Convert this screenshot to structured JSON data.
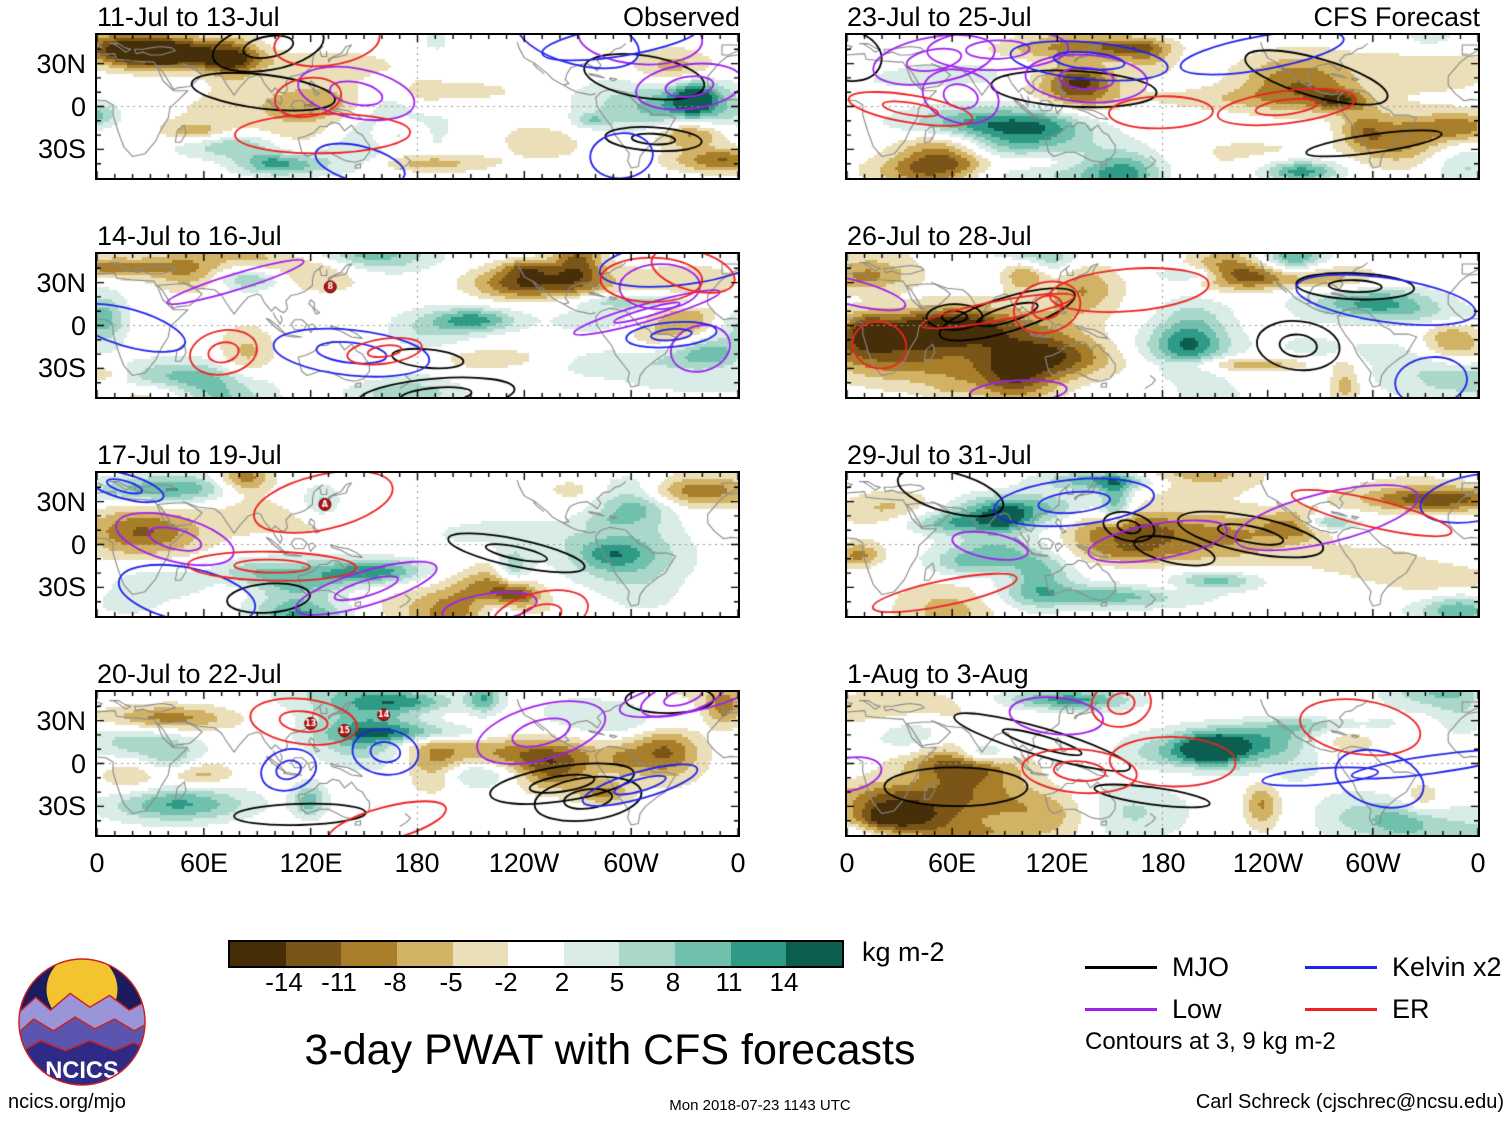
{
  "title": "3-day PWAT with CFS forecasts",
  "panels": [
    {
      "title": "11-Jul to 13-Jul",
      "corner": "Observed",
      "side": "left",
      "row": 0,
      "seed": 11,
      "storms": []
    },
    {
      "title": "14-Jul to 16-Jul",
      "corner": "",
      "side": "left",
      "row": 1,
      "seed": 14,
      "storms": [
        {
          "label": "8",
          "lon": 131,
          "lat": 27
        }
      ]
    },
    {
      "title": "17-Jul to 19-Jul",
      "corner": "",
      "side": "left",
      "row": 2,
      "seed": 17,
      "storms": [
        {
          "label": "A",
          "lon": 128,
          "lat": 28
        }
      ]
    },
    {
      "title": "20-Jul to 22-Jul",
      "corner": "",
      "side": "left",
      "row": 3,
      "seed": 20,
      "storms": [
        {
          "label": "13",
          "lon": 120,
          "lat": 28
        },
        {
          "label": "15",
          "lon": 139,
          "lat": 23
        },
        {
          "label": "14",
          "lon": 161,
          "lat": 34
        }
      ]
    },
    {
      "title": "23-Jul to 25-Jul",
      "corner": "CFS Forecast",
      "side": "right",
      "row": 0,
      "seed": 23,
      "storms": []
    },
    {
      "title": "26-Jul to 28-Jul",
      "corner": "",
      "side": "right",
      "row": 1,
      "seed": 26,
      "storms": []
    },
    {
      "title": "29-Jul to 31-Jul",
      "corner": "",
      "side": "right",
      "row": 2,
      "seed": 29,
      "storms": []
    },
    {
      "title": "1-Aug to 3-Aug",
      "corner": "",
      "side": "right",
      "row": 3,
      "seed": 32,
      "storms": []
    }
  ],
  "axes": {
    "y_ticks": [
      "30N",
      "0",
      "30S"
    ],
    "x_ticks": [
      "0",
      "60E",
      "120E",
      "180",
      "120W",
      "60W",
      "0"
    ]
  },
  "colorbar": {
    "unit": "kg m-2",
    "tick_labels": [
      "-14",
      "-11",
      "-8",
      "-5",
      "-2",
      "2",
      "5",
      "8",
      "11",
      "14"
    ],
    "colors": [
      "#452e08",
      "#7a5517",
      "#a87e2a",
      "#d2b264",
      "#eadfb8",
      "#ffffff",
      "#d9ece7",
      "#a9d8cb",
      "#6fc0ad",
      "#2f9b87",
      "#0b5e50"
    ]
  },
  "legend": {
    "items": [
      {
        "label": "MJO",
        "color": "#000000"
      },
      {
        "label": "Low",
        "color": "#a020f0"
      },
      {
        "label": "Kelvin x2",
        "color": "#2222ee"
      },
      {
        "label": "ER",
        "color": "#ee2222"
      }
    ],
    "note": "Contours at 3, 9 kg m-2"
  },
  "logo": {
    "text": "NCICS"
  },
  "footer": {
    "left": "ncics.org/mjo",
    "center": "Mon 2018-07-23 1143 UTC",
    "right": "Carl Schreck (cjschrec@ncsu.edu)"
  },
  "chart_data": {
    "type": "heatmap",
    "title": "3-day PWAT with CFS forecasts",
    "variable": "3-day precipitable water anomaly, shaded maps with wave-filtered contours",
    "unit": "kg m-2",
    "color_levels": [
      -14,
      -11,
      -8,
      -5,
      -2,
      2,
      5,
      8,
      11,
      14
    ],
    "lon_range": [
      0,
      360
    ],
    "lat_tick_labels": [
      "30N",
      "0",
      "30S"
    ],
    "lon_tick_labels": [
      "0",
      "60E",
      "120E",
      "180",
      "120W",
      "60W",
      "0"
    ],
    "panels": [
      {
        "dates": "11-Jul to 13-Jul",
        "column": "Observed"
      },
      {
        "dates": "14-Jul to 16-Jul",
        "column": "Observed"
      },
      {
        "dates": "17-Jul to 19-Jul",
        "column": "Observed"
      },
      {
        "dates": "20-Jul to 22-Jul",
        "column": "Observed"
      },
      {
        "dates": "23-Jul to 25-Jul",
        "column": "CFS Forecast"
      },
      {
        "dates": "26-Jul to 28-Jul",
        "column": "CFS Forecast"
      },
      {
        "dates": "29-Jul to 31-Jul",
        "column": "CFS Forecast"
      },
      {
        "dates": "1-Aug to 3-Aug",
        "column": "CFS Forecast"
      }
    ],
    "contours": {
      "levels_kg_m2": [
        3,
        9
      ],
      "series": [
        "MJO",
        "Low",
        "Kelvin x2",
        "ER"
      ]
    },
    "storm_markers": [
      {
        "panel": "14-Jul to 16-Jul",
        "labels": [
          "8"
        ]
      },
      {
        "panel": "17-Jul to 19-Jul",
        "labels": [
          "A"
        ]
      },
      {
        "panel": "20-Jul to 22-Jul",
        "labels": [
          "13",
          "14",
          "15"
        ]
      }
    ]
  }
}
